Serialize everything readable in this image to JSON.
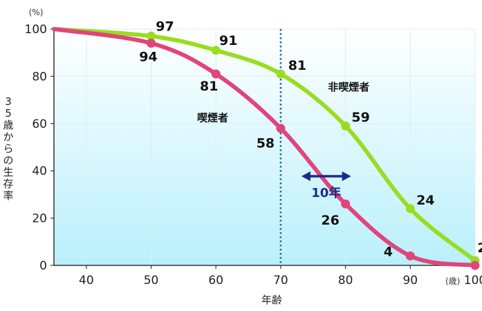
{
  "chart_data": {
    "type": "line",
    "xlabel": "年齢",
    "ylabel": "35歳からの生存率",
    "y_unit": "(%)",
    "x_unit": "(歳)",
    "xlim": [
      35,
      100
    ],
    "ylim": [
      0,
      100
    ],
    "x_ticks": [
      "40",
      "50",
      "60",
      "70",
      "80",
      "90",
      "100"
    ],
    "y_ticks": [
      "0",
      "20",
      "40",
      "60",
      "80",
      "100"
    ],
    "reference_line_x": 70,
    "series": [
      {
        "name": "非喫煙者",
        "color": "#99dd22",
        "x": [
          35,
          50,
          60,
          70,
          80,
          90,
          100
        ],
        "y": [
          100,
          97,
          91,
          81,
          59,
          24,
          2
        ],
        "labels": [
          "",
          "97",
          "91",
          "81",
          "59",
          "24",
          "2"
        ]
      },
      {
        "name": "喫煙者",
        "color": "#e0457b",
        "x": [
          35,
          50,
          60,
          70,
          80,
          90,
          100
        ],
        "y": [
          100,
          94,
          81,
          58,
          26,
          4,
          0
        ],
        "labels": [
          "",
          "94",
          "81",
          "58",
          "26",
          "4",
          ""
        ]
      }
    ],
    "annotation": {
      "text": "10年",
      "from_x": 70,
      "to_x": 80,
      "y": 50,
      "color": "#1e2a8a"
    },
    "background_gradient": [
      "#ffffff",
      "#b9f0fb"
    ]
  }
}
